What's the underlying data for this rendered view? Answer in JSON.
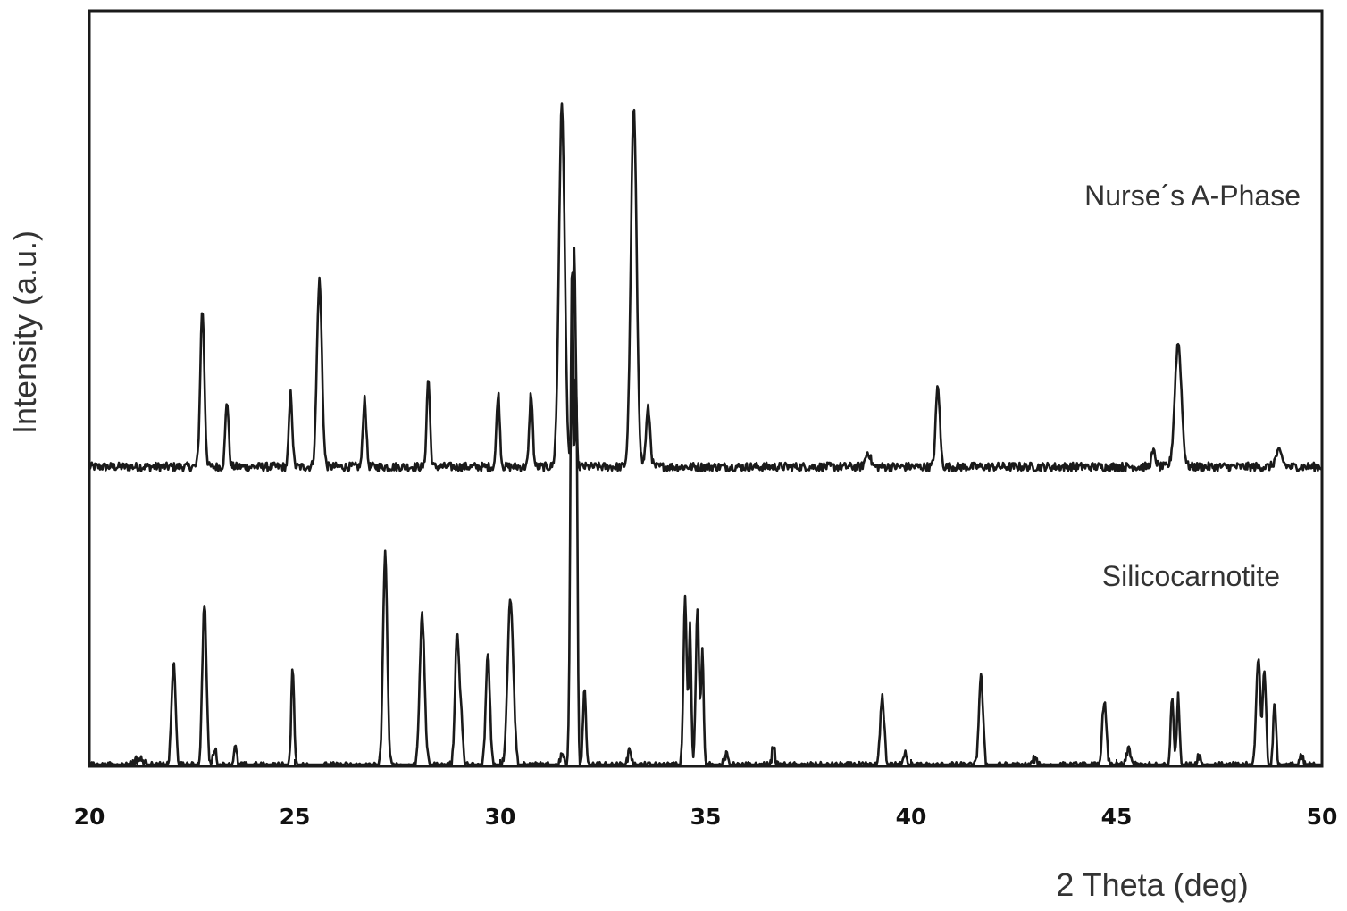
{
  "chart_data": {
    "type": "line",
    "title": "",
    "xlabel": "2 Theta (deg)",
    "ylabel": "Intensity (a.u.)",
    "xlim": [
      20,
      50
    ],
    "xticks": [
      20,
      25,
      30,
      35,
      40,
      45,
      50
    ],
    "ylim": [
      0,
      1
    ],
    "grid": false,
    "colors": {
      "line": "#1a1a1a",
      "frame": "#1a1a1a"
    },
    "series": [
      {
        "name": "Nurse´s A-Phase",
        "baseline": 0.41,
        "peaks": [
          {
            "x": 22.75,
            "h": 0.215,
            "w": 0.05
          },
          {
            "x": 23.35,
            "h": 0.09,
            "w": 0.04
          },
          {
            "x": 24.9,
            "h": 0.1,
            "w": 0.04
          },
          {
            "x": 25.6,
            "h": 0.255,
            "w": 0.06
          },
          {
            "x": 26.7,
            "h": 0.095,
            "w": 0.04
          },
          {
            "x": 28.25,
            "h": 0.12,
            "w": 0.04
          },
          {
            "x": 29.95,
            "h": 0.1,
            "w": 0.04
          },
          {
            "x": 30.75,
            "h": 0.1,
            "w": 0.04
          },
          {
            "x": 31.5,
            "h": 0.495,
            "w": 0.07
          },
          {
            "x": 31.8,
            "h": 0.3,
            "w": 0.035
          },
          {
            "x": 33.25,
            "h": 0.49,
            "w": 0.07
          },
          {
            "x": 33.6,
            "h": 0.08,
            "w": 0.05
          },
          {
            "x": 38.95,
            "h": 0.02,
            "w": 0.06
          },
          {
            "x": 40.65,
            "h": 0.11,
            "w": 0.05
          },
          {
            "x": 45.9,
            "h": 0.02,
            "w": 0.05
          },
          {
            "x": 46.5,
            "h": 0.17,
            "w": 0.08
          },
          {
            "x": 48.95,
            "h": 0.02,
            "w": 0.08
          }
        ]
      },
      {
        "name": "Silicocarnotite",
        "baseline": 0.0,
        "peaks": [
          {
            "x": 21.2,
            "h": 0.01,
            "w": 0.12
          },
          {
            "x": 22.05,
            "h": 0.14,
            "w": 0.05
          },
          {
            "x": 22.8,
            "h": 0.225,
            "w": 0.05
          },
          {
            "x": 23.05,
            "h": 0.025,
            "w": 0.04
          },
          {
            "x": 23.55,
            "h": 0.025,
            "w": 0.04
          },
          {
            "x": 24.95,
            "h": 0.135,
            "w": 0.035
          },
          {
            "x": 27.2,
            "h": 0.295,
            "w": 0.05
          },
          {
            "x": 28.1,
            "h": 0.205,
            "w": 0.06
          },
          {
            "x": 28.95,
            "h": 0.18,
            "w": 0.05
          },
          {
            "x": 29.05,
            "h": 0.06,
            "w": 0.04
          },
          {
            "x": 29.7,
            "h": 0.155,
            "w": 0.05
          },
          {
            "x": 30.25,
            "h": 0.23,
            "w": 0.07
          },
          {
            "x": 31.5,
            "h": 0.02,
            "w": 0.04
          },
          {
            "x": 31.75,
            "h": 0.69,
            "w": 0.04
          },
          {
            "x": 31.85,
            "h": 0.5,
            "w": 0.03
          },
          {
            "x": 32.05,
            "h": 0.105,
            "w": 0.035
          },
          {
            "x": 33.15,
            "h": 0.025,
            "w": 0.04
          },
          {
            "x": 34.5,
            "h": 0.23,
            "w": 0.04
          },
          {
            "x": 34.62,
            "h": 0.19,
            "w": 0.03
          },
          {
            "x": 34.8,
            "h": 0.22,
            "w": 0.04
          },
          {
            "x": 34.92,
            "h": 0.16,
            "w": 0.03
          },
          {
            "x": 35.5,
            "h": 0.015,
            "w": 0.05
          },
          {
            "x": 36.65,
            "h": 0.03,
            "w": 0.035
          },
          {
            "x": 39.3,
            "h": 0.095,
            "w": 0.05
          },
          {
            "x": 39.85,
            "h": 0.02,
            "w": 0.05
          },
          {
            "x": 41.7,
            "h": 0.125,
            "w": 0.05
          },
          {
            "x": 43.0,
            "h": 0.01,
            "w": 0.05
          },
          {
            "x": 44.7,
            "h": 0.09,
            "w": 0.05
          },
          {
            "x": 45.3,
            "h": 0.025,
            "w": 0.05
          },
          {
            "x": 46.35,
            "h": 0.095,
            "w": 0.035
          },
          {
            "x": 46.5,
            "h": 0.095,
            "w": 0.035
          },
          {
            "x": 47.0,
            "h": 0.015,
            "w": 0.05
          },
          {
            "x": 48.45,
            "h": 0.15,
            "w": 0.05
          },
          {
            "x": 48.6,
            "h": 0.13,
            "w": 0.04
          },
          {
            "x": 48.85,
            "h": 0.09,
            "w": 0.035
          },
          {
            "x": 49.5,
            "h": 0.012,
            "w": 0.05
          }
        ]
      }
    ]
  }
}
